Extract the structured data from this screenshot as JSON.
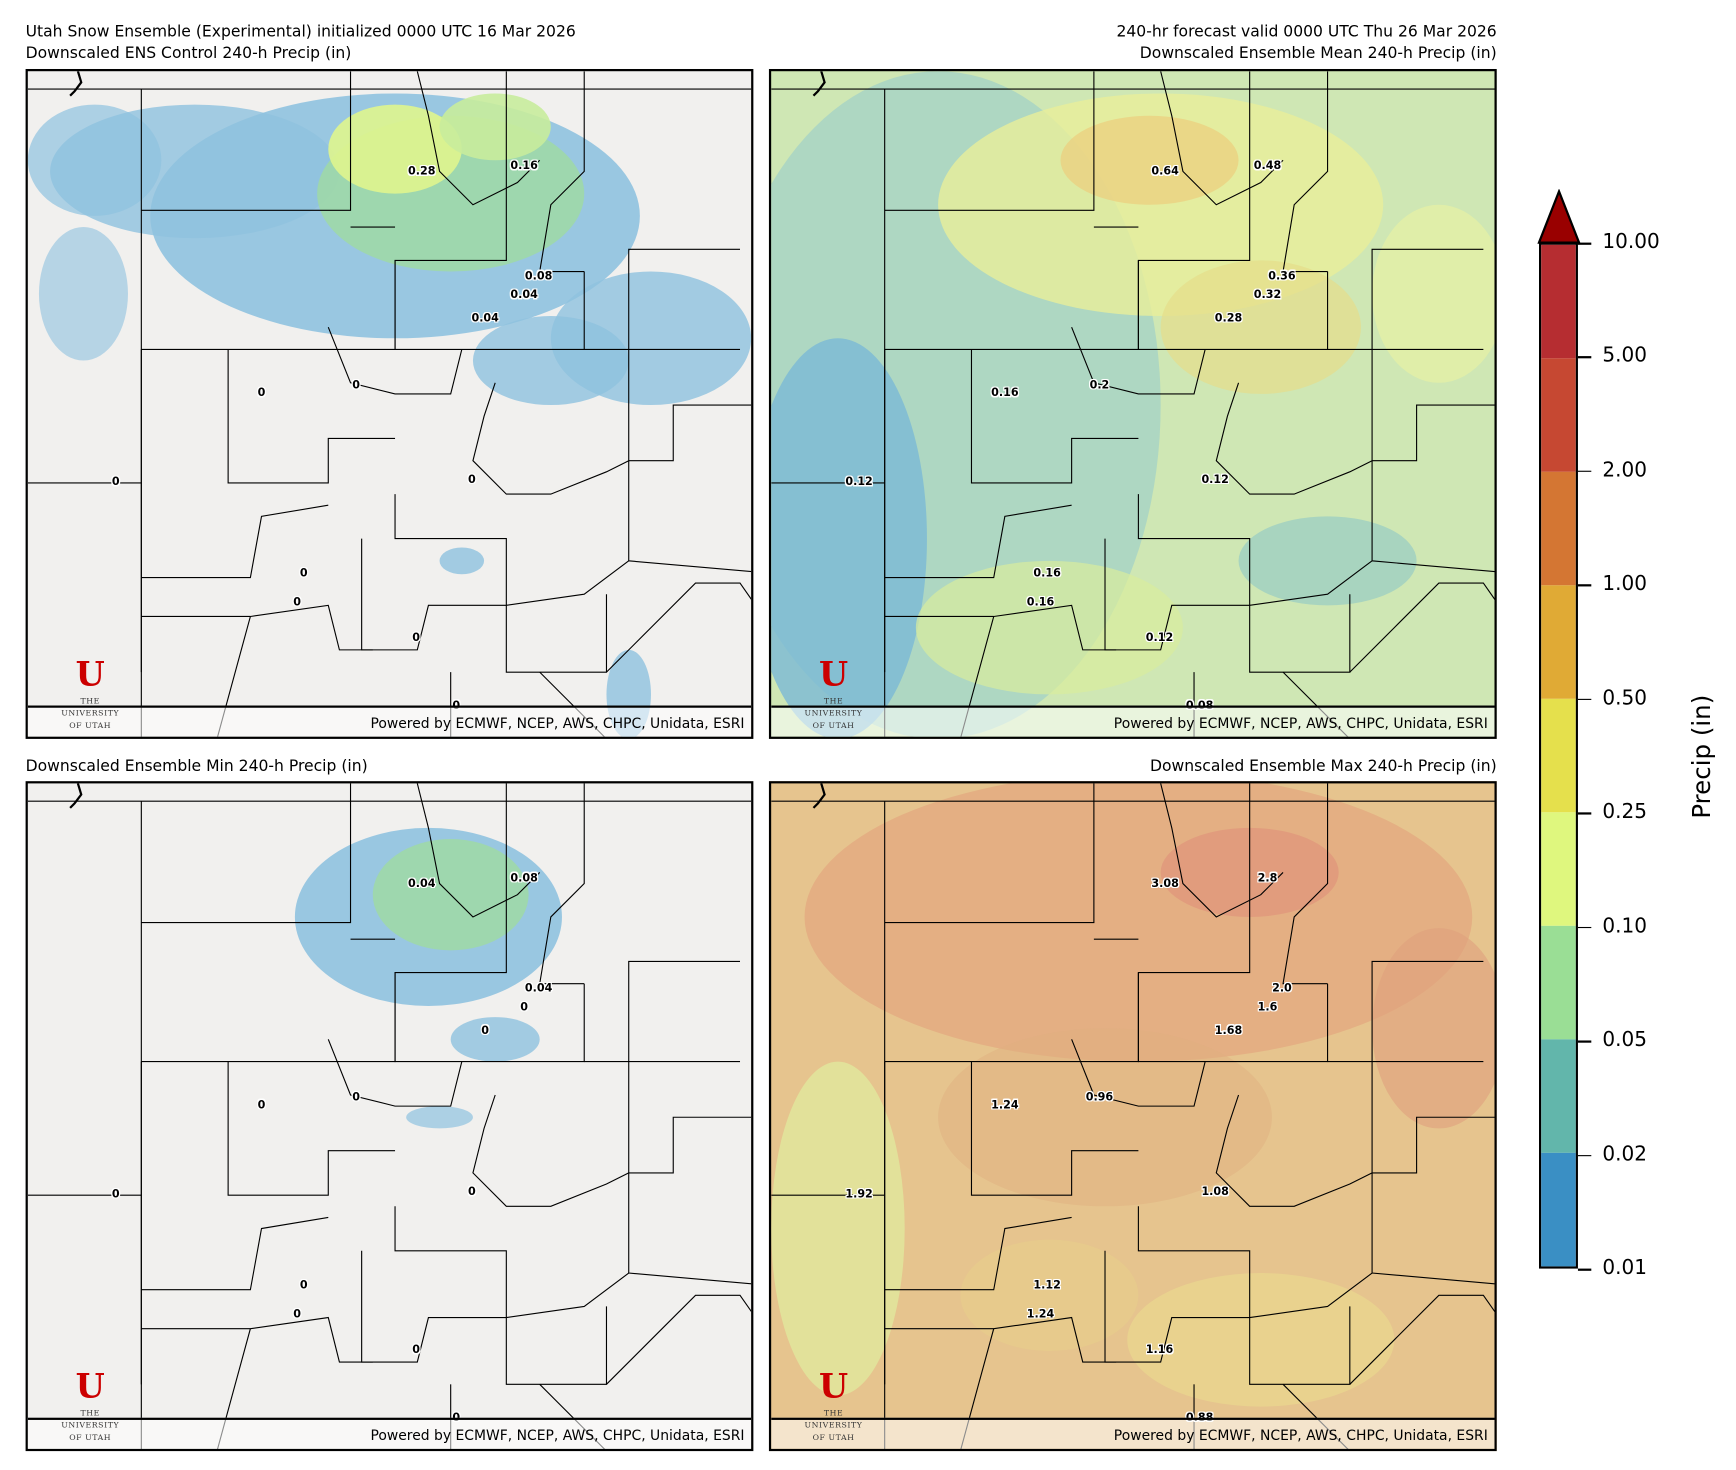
{
  "header": {
    "left_line1": "Utah Snow Ensemble (Experimental) initialized 0000 UTC 16 Mar 2026",
    "right_line1": "240-hr forecast valid 0000 UTC Thu 26 Mar 2026"
  },
  "footer_attribution": "Powered by ECMWF, NCEP, AWS, CHPC, Unidata, ESRI",
  "logo": {
    "mark": "U",
    "line1": "THE",
    "line2": "UNIVERSITY",
    "line3": "OF UTAH"
  },
  "chart_data": [
    {
      "type": "heatmap",
      "title": "Downscaled ENS Control 240-h Precip (in)",
      "units": "in",
      "point_labels": [
        "0.28",
        "0.16",
        "0.08",
        "0.04",
        "0.04",
        "0",
        "0",
        "0",
        "0",
        "0",
        "0",
        "0",
        "0"
      ],
      "base_color": "#f1f0ee"
    },
    {
      "type": "heatmap",
      "title": "Downscaled Ensemble Mean 240-h Precip (in)",
      "units": "in",
      "point_labels": [
        "0.64",
        "0.48",
        "0.36",
        "0.32",
        "0.28",
        "0.16",
        "0.2",
        "0.12",
        "0.12",
        "0.16",
        "0.16",
        "0.12",
        "0.08"
      ],
      "base_color": "#cfe7b4"
    },
    {
      "type": "heatmap",
      "title": "Downscaled Ensemble Min 240-h Precip (in)",
      "units": "in",
      "point_labels": [
        "0.04",
        "0.08",
        "0.04",
        "0",
        "0",
        "0",
        "0",
        "0",
        "0",
        "0",
        "0",
        "0",
        "0"
      ],
      "base_color": "#f1f0ee"
    },
    {
      "type": "heatmap",
      "title": "Downscaled Ensemble Max 240-h Precip (in)",
      "units": "in",
      "point_labels": [
        "3.08",
        "2.8",
        "2.0",
        "1.6",
        "1.68",
        "1.24",
        "0.96",
        "1.92",
        "1.08",
        "1.12",
        "1.24",
        "1.16",
        "0.88"
      ],
      "base_color": "#e6c48e"
    }
  ],
  "colorbar": {
    "label": "Precip (in)",
    "ticks": [
      "0.01",
      "0.02",
      "0.05",
      "0.10",
      "0.25",
      "0.50",
      "1.00",
      "2.00",
      "5.00",
      "10.00"
    ],
    "colors": [
      "#3a8fc4",
      "#62b6ab",
      "#9ade95",
      "#dff77e",
      "#e5e04c",
      "#e0aa35",
      "#d47633",
      "#c64832",
      "#b62d31"
    ],
    "extend_color": "#990000",
    "extend": "max"
  }
}
